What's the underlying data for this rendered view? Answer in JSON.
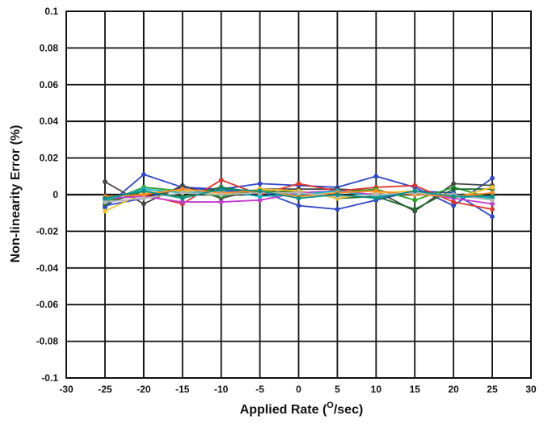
{
  "chart_data": {
    "type": "line",
    "title": "",
    "xlabel": "Applied Rate (",
    "xlabel_sup": "O",
    "xlabel_suffix": "/sec)",
    "ylabel": "Non-linearity Error (%)",
    "xlim": [
      -30,
      30
    ],
    "ylim": [
      -0.1,
      0.1
    ],
    "grid": true,
    "legend": "none",
    "x_ticks": [
      -30,
      -25,
      -20,
      -15,
      -10,
      -5,
      0,
      5,
      10,
      15,
      20,
      25,
      30
    ],
    "x_tick_labels": [
      "-30",
      "-25",
      "-20",
      "-15",
      "-10",
      "-5",
      "0",
      "5",
      "10",
      "15",
      "20",
      "25",
      "30"
    ],
    "y_ticks": [
      0.1,
      0.08,
      0.06,
      0.04,
      0.02,
      0,
      -0.02,
      -0.04,
      -0.06,
      -0.08,
      -0.1
    ],
    "y_tick_labels": [
      "0.1",
      "0.08",
      "0.06",
      "0.04",
      "0.02",
      "0",
      "-0.02",
      "-0.04",
      "-0.06",
      "-0.08",
      "-0.1"
    ],
    "x": [
      -25,
      -20,
      -15,
      -10,
      -5,
      0,
      5,
      10,
      15,
      20,
      25
    ],
    "series": [
      {
        "color": "#2f47c8",
        "values": [
          -0.007,
          0.011,
          0.004,
          0.003,
          0.006,
          0.005,
          0.004,
          0.01,
          0.004,
          -0.006,
          0.009
        ]
      },
      {
        "color": "#2f47c8",
        "values": [
          -0.006,
          -0.002,
          0.004,
          0.002,
          0.002,
          -0.006,
          -0.008,
          -0.003,
          0.002,
          0.001,
          -0.012
        ]
      },
      {
        "color": "#444444",
        "values": [
          0.007,
          -0.005,
          0.005,
          -0.002,
          0.003,
          0.003,
          0.003,
          0.002,
          -0.009,
          0.006,
          0.005
        ]
      },
      {
        "color": "#e0342b",
        "values": [
          -0.003,
          0.0,
          -0.005,
          0.008,
          0.0,
          0.006,
          0.002,
          0.004,
          0.005,
          -0.004,
          -0.008
        ]
      },
      {
        "color": "#2aa02a",
        "values": [
          -0.004,
          0.004,
          0.002,
          -0.001,
          0.003,
          -0.001,
          0.001,
          0.003,
          -0.003,
          0.004,
          -0.002
        ]
      },
      {
        "color": "#1d6e2a",
        "values": [
          -0.005,
          0.002,
          -0.001,
          0.004,
          0.001,
          0.002,
          -0.002,
          -0.001,
          -0.008,
          0.003,
          0.003
        ]
      },
      {
        "color": "#f2c12e",
        "values": [
          -0.009,
          0.001,
          0.002,
          0.0,
          0.003,
          0.002,
          -0.002,
          0.001,
          0.002,
          -0.002,
          0.004
        ]
      },
      {
        "color": "#c23ad0",
        "values": [
          -0.002,
          -0.001,
          -0.004,
          -0.004,
          -0.003,
          0.001,
          0.002,
          0.0,
          0.001,
          -0.002,
          -0.005
        ]
      },
      {
        "color": "#18b8c8",
        "values": [
          -0.003,
          0.003,
          0.001,
          0.002,
          -0.001,
          0.0,
          0.002,
          -0.001,
          0.001,
          -0.001,
          -0.002
        ]
      },
      {
        "color": "#ff8a1f",
        "values": [
          -0.001,
          0.0,
          0.003,
          0.001,
          0.002,
          -0.001,
          0.001,
          0.002,
          0.0,
          -0.001,
          0.001
        ]
      },
      {
        "color": "#b8b8b8",
        "values": [
          -0.004,
          -0.002,
          0.001,
          0.0,
          0.001,
          0.001,
          -0.001,
          0.0,
          0.001,
          0.0,
          -0.003
        ]
      },
      {
        "color": "#0e8f87",
        "values": [
          -0.002,
          0.002,
          -0.002,
          0.003,
          0.002,
          -0.002,
          0.0,
          -0.002,
          0.002,
          -0.001,
          -0.001
        ]
      }
    ]
  }
}
